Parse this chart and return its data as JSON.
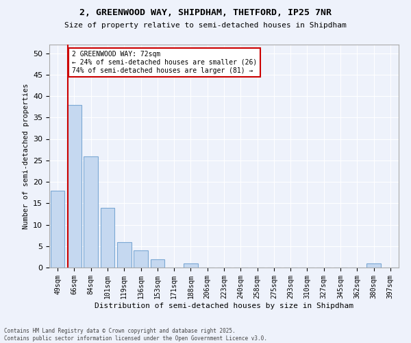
{
  "title1": "2, GREENWOOD WAY, SHIPDHAM, THETFORD, IP25 7NR",
  "title2": "Size of property relative to semi-detached houses in Shipdham",
  "xlabel": "Distribution of semi-detached houses by size in Shipdham",
  "ylabel": "Number of semi-detached properties",
  "categories": [
    "49sqm",
    "66sqm",
    "84sqm",
    "101sqm",
    "119sqm",
    "136sqm",
    "153sqm",
    "171sqm",
    "188sqm",
    "206sqm",
    "223sqm",
    "240sqm",
    "258sqm",
    "275sqm",
    "293sqm",
    "310sqm",
    "327sqm",
    "345sqm",
    "362sqm",
    "380sqm",
    "397sqm"
  ],
  "values": [
    18,
    38,
    26,
    14,
    6,
    4,
    2,
    0,
    1,
    0,
    0,
    0,
    0,
    0,
    0,
    0,
    0,
    0,
    0,
    1,
    0
  ],
  "bar_color": "#c5d8f0",
  "bar_edge_color": "#7ba8d4",
  "ylim": [
    0,
    52
  ],
  "yticks": [
    0,
    5,
    10,
    15,
    20,
    25,
    30,
    35,
    40,
    45,
    50
  ],
  "vline_x_index": 1,
  "vline_color": "#cc0000",
  "annotation_text": "2 GREENWOOD WAY: 72sqm\n← 24% of semi-detached houses are smaller (26)\n74% of semi-detached houses are larger (81) →",
  "annotation_box_color": "#ffffff",
  "annotation_box_edge_color": "#cc0000",
  "footnote": "Contains HM Land Registry data © Crown copyright and database right 2025.\nContains public sector information licensed under the Open Government Licence v3.0.",
  "background_color": "#eef2fb"
}
